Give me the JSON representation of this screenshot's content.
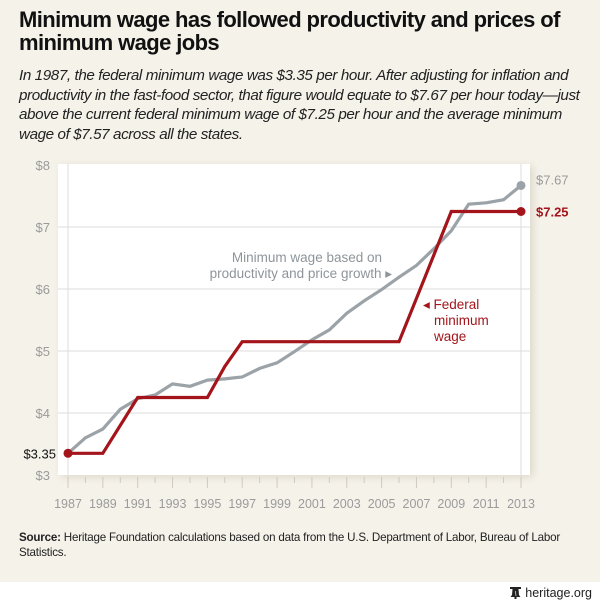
{
  "title": "Minimum wage has followed productivity and prices of minimum wage jobs",
  "subtitle": "In 1987, the federal minimum wage was $3.35 per hour. After adjusting for inflation and productivity in the fast-food sector, that figure would equate to $7.67 per hour today—just above the current federal minimum wage of $7.25 per hour and the average minimum wage of $7.57 across all the states.",
  "source": {
    "label": "Source:",
    "text": " Heritage Foundation calculations based on data from the U.S. Department of Labor, Bureau of Labor Statistics."
  },
  "footer": {
    "logo_icon": "liberty-bell-icon",
    "site": "heritage.org"
  },
  "colors": {
    "background": "#f5f2ea",
    "federal": "#a3151b",
    "productivity": "#9ba3a8",
    "axis_text": "#9b9b9b",
    "grid": "#dcdcdc"
  },
  "chart_data": {
    "type": "line",
    "title": "Minimum wage has followed productivity and prices of minimum wage jobs",
    "xlabel": "",
    "ylabel": "",
    "x": [
      1987,
      1988,
      1989,
      1990,
      1991,
      1992,
      1993,
      1994,
      1995,
      1996,
      1997,
      1998,
      1999,
      2000,
      2001,
      2002,
      2003,
      2004,
      2005,
      2006,
      2007,
      2008,
      2009,
      2010,
      2011,
      2012,
      2013
    ],
    "xlim": [
      1987,
      2013
    ],
    "ylim": [
      3,
      8
    ],
    "grid": true,
    "x_ticks": [
      "1987",
      "1989",
      "1991",
      "1993",
      "1995",
      "1997",
      "1999",
      "2001",
      "2003",
      "2005",
      "2007",
      "2009",
      "2011",
      "2013"
    ],
    "y_ticks": [
      {
        "value": 3,
        "label": "$3"
      },
      {
        "value": 4,
        "label": "$4"
      },
      {
        "value": 5,
        "label": "$5"
      },
      {
        "value": 6,
        "label": "$6"
      },
      {
        "value": 7,
        "label": "$7"
      },
      {
        "value": 8,
        "label": "$8"
      }
    ],
    "series": [
      {
        "name": "Minimum wage based on productivity and price growth",
        "color": "#9ba3a8",
        "values": [
          3.35,
          3.6,
          3.74,
          4.06,
          4.23,
          4.29,
          4.47,
          4.43,
          4.53,
          4.55,
          4.58,
          4.72,
          4.81,
          4.99,
          5.18,
          5.34,
          5.61,
          5.81,
          5.99,
          6.19,
          6.38,
          6.65,
          6.94,
          7.37,
          7.39,
          7.44,
          7.67
        ],
        "end_label": "$7.67"
      },
      {
        "name": "Federal minimum wage",
        "color": "#a3151b",
        "values": [
          3.35,
          3.35,
          3.35,
          3.8,
          4.25,
          4.25,
          4.25,
          4.25,
          4.25,
          4.75,
          5.15,
          5.15,
          5.15,
          5.15,
          5.15,
          5.15,
          5.15,
          5.15,
          5.15,
          5.15,
          5.85,
          6.55,
          7.25,
          7.25,
          7.25,
          7.25,
          7.25
        ],
        "start_label": "$3.35",
        "end_label": "$7.25"
      }
    ],
    "annotations": [
      {
        "series": "productivity",
        "lines": [
          "Minimum wage based on",
          "productivity and price growth ▸"
        ]
      },
      {
        "series": "federal",
        "lines": [
          "◂ Federal",
          "minimum",
          "wage"
        ]
      }
    ]
  }
}
